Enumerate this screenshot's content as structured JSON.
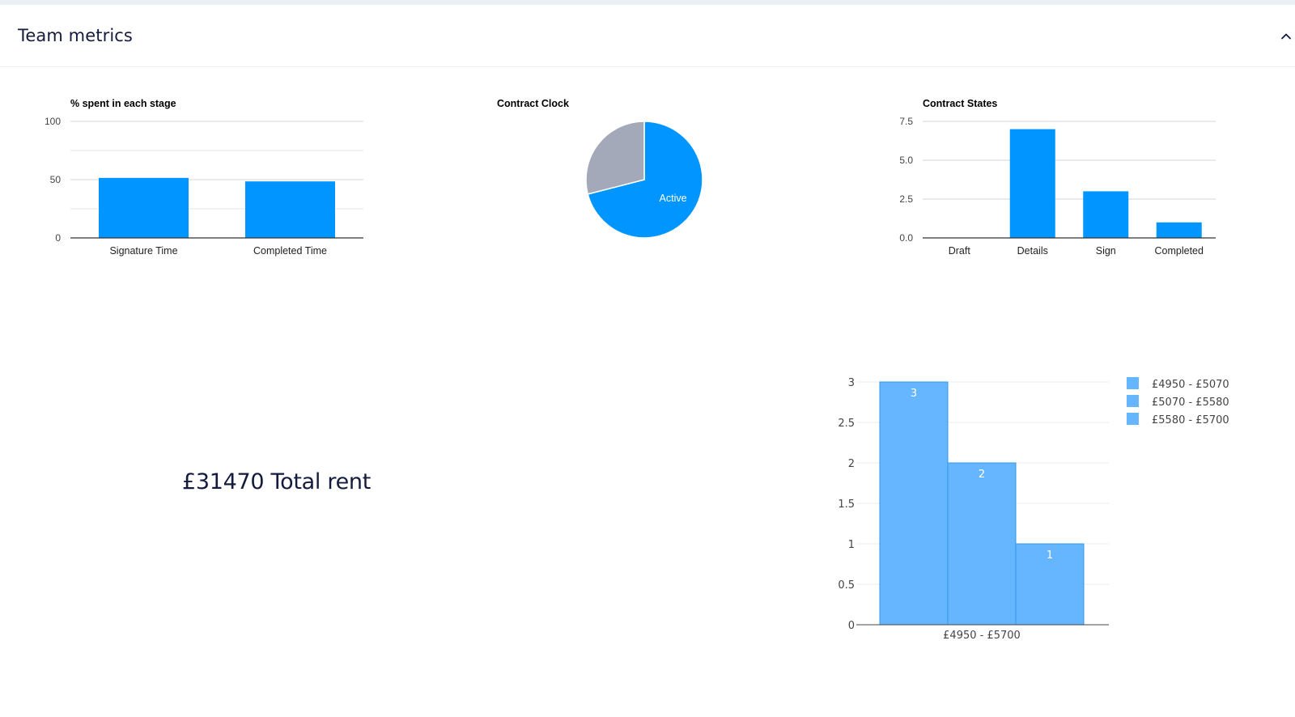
{
  "header": {
    "title": "Team metrics",
    "collapse_icon": "chevron-up-icon"
  },
  "colors": {
    "primary": "#0095ff",
    "muted": "#a3a9b8",
    "hist": "#66b5ff",
    "hist_edge": "#3399e6"
  },
  "total_rent": {
    "text": "£31470 Total rent"
  },
  "chart_data": [
    {
      "type": "bar",
      "title": "% spent in each stage",
      "categories": [
        "Signature Time",
        "Completed Time"
      ],
      "values": [
        51.5,
        48.5
      ],
      "ylim": [
        0,
        100
      ],
      "yticks": [
        "0",
        "50",
        "100"
      ],
      "ytick_values": [
        0,
        50,
        100
      ],
      "grid": true
    },
    {
      "type": "pie",
      "title": "Contract Clock",
      "slices": [
        {
          "label": "Active",
          "value": 71,
          "color": "#0095ff",
          "show_label": true
        },
        {
          "label": "",
          "value": 29,
          "color": "#a3a9b8",
          "show_label": false
        }
      ]
    },
    {
      "type": "bar",
      "title": "Contract States",
      "categories": [
        "Draft",
        "Details",
        "Sign",
        "Completed"
      ],
      "values": [
        0,
        7,
        3,
        1
      ],
      "ylim": [
        0,
        7.5
      ],
      "yticks": [
        "0.0",
        "2.5",
        "5.0",
        "7.5"
      ],
      "ytick_values": [
        0,
        2.5,
        5,
        7.5
      ],
      "grid": true
    },
    {
      "type": "bar",
      "title": "",
      "categories": [
        "£4950 - £5700"
      ],
      "series": [
        {
          "name": "£4950 - £5070",
          "value": 3
        },
        {
          "name": "£5070 - £5580",
          "value": 2
        },
        {
          "name": "£5580 - £5700",
          "value": 1
        }
      ],
      "ylim": [
        0,
        3
      ],
      "yticks": [
        "0",
        "0.5",
        "1",
        "1.5",
        "2",
        "2.5",
        "3"
      ],
      "ytick_values": [
        0,
        0.5,
        1,
        1.5,
        2,
        2.5,
        3
      ],
      "legend": "top-right",
      "grid": true
    }
  ]
}
